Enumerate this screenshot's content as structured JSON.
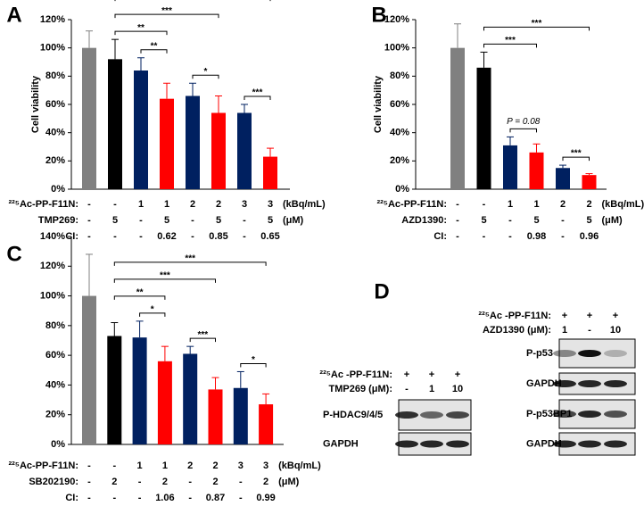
{
  "chart_data": [
    {
      "type": "bar",
      "label": "A",
      "ylabel": "Cell viability",
      "values": [
        100,
        92,
        84,
        64,
        66,
        54,
        54,
        23
      ],
      "errors": [
        12,
        14,
        9,
        11,
        9,
        12,
        6,
        6
      ],
      "colors": [
        "#808080",
        "#000000",
        "#002060",
        "#ff0000",
        "#002060",
        "#ff0000",
        "#002060",
        "#ff0000"
      ],
      "ylim": [
        0,
        120
      ],
      "yticks": [
        {
          "value": 0,
          "label": "0%"
        },
        {
          "value": 20,
          "label": "20%"
        },
        {
          "value": 40,
          "label": "40%"
        },
        {
          "value": 60,
          "label": "60%"
        },
        {
          "value": 80,
          "label": "80%"
        },
        {
          "value": 100,
          "label": "100%"
        },
        {
          "value": 120,
          "label": "120%"
        }
      ],
      "conditions": [
        {
          "label": "²²⁵Ac-PP-F11N:",
          "values": [
            "-",
            "-",
            "1",
            "1",
            "2",
            "2",
            "3",
            "3"
          ],
          "unit": "(kBq/mL)"
        },
        {
          "label": "TMP269:",
          "values": [
            "-",
            "5",
            "-",
            "5",
            "-",
            "5",
            "-",
            "5"
          ],
          "unit": "(μM)"
        },
        {
          "label": "CI:",
          "values": [
            "-",
            "-",
            "-",
            "0.62",
            "-",
            "0.85",
            "-",
            "0.65"
          ]
        }
      ],
      "comparisons": [
        {
          "bars": [
            2,
            3
          ],
          "label": "**"
        },
        {
          "bars": [
            4,
            5
          ],
          "label": "*"
        },
        {
          "bars": [
            6,
            7
          ],
          "label": "***"
        },
        {
          "bars": [
            1,
            3
          ],
          "label": "**"
        },
        {
          "bars": [
            1,
            5
          ],
          "label": "***"
        },
        {
          "bars": [
            1,
            7
          ],
          "label": "***"
        }
      ]
    },
    {
      "type": "bar",
      "label": "B",
      "ylabel": "Cell viability",
      "values": [
        100,
        86,
        31,
        26,
        15,
        10
      ],
      "errors": [
        17,
        11,
        6,
        6,
        2,
        1
      ],
      "colors": [
        "#808080",
        "#000000",
        "#002060",
        "#ff0000",
        "#002060",
        "#ff0000"
      ],
      "ylim": [
        0,
        120
      ],
      "yticks": [
        {
          "value": 0,
          "label": "0%"
        },
        {
          "value": 20,
          "label": "20%"
        },
        {
          "value": 40,
          "label": "40%"
        },
        {
          "value": 60,
          "label": "60%"
        },
        {
          "value": 80,
          "label": "80%"
        },
        {
          "value": 100,
          "label": "100%"
        },
        {
          "value": 120,
          "label": "120%"
        }
      ],
      "conditions": [
        {
          "label": "²²⁵Ac-PP-F11N:",
          "values": [
            "-",
            "-",
            "1",
            "1",
            "2",
            "2"
          ],
          "unit": "(kBq/mL)"
        },
        {
          "label": "AZD1390:",
          "values": [
            "-",
            "5",
            "-",
            "5",
            "-",
            "5"
          ],
          "unit": "(μM)"
        },
        {
          "label": "CI:",
          "values": [
            "-",
            "-",
            "-",
            "0.98",
            "-",
            "0.96"
          ]
        }
      ],
      "comparisons": [
        {
          "bars": [
            2,
            3
          ],
          "label": "P = 0.08"
        },
        {
          "bars": [
            4,
            5
          ],
          "label": "***"
        },
        {
          "bars": [
            1,
            3
          ],
          "label": "***"
        },
        {
          "bars": [
            1,
            5
          ],
          "label": "***"
        }
      ]
    },
    {
      "type": "bar",
      "label": "C",
      "values": [
        100,
        73,
        72,
        56,
        61,
        37,
        38,
        27
      ],
      "errors": [
        28,
        9,
        11,
        10,
        5,
        8,
        11,
        7
      ],
      "colors": [
        "#808080",
        "#000000",
        "#002060",
        "#ff0000",
        "#002060",
        "#ff0000",
        "#002060",
        "#ff0000"
      ],
      "ylim": [
        0,
        140
      ],
      "yticks": [
        {
          "value": 0,
          "label": "0%"
        },
        {
          "value": 20,
          "label": "20%"
        },
        {
          "value": 40,
          "label": "40%"
        },
        {
          "value": 60,
          "label": "60%"
        },
        {
          "value": 80,
          "label": "80%"
        },
        {
          "value": 100,
          "label": "100%"
        },
        {
          "value": 120,
          "label": "120%"
        },
        {
          "value": 140,
          "label": "140%"
        }
      ],
      "conditions": [
        {
          "label": "²²⁵Ac-PP-F11N:",
          "values": [
            "-",
            "-",
            "1",
            "1",
            "2",
            "2",
            "3",
            "3"
          ],
          "unit": "(kBq/mL)"
        },
        {
          "label": "SB202190:",
          "values": [
            "-",
            "2",
            "-",
            "2",
            "-",
            "2",
            "-",
            "2"
          ],
          "unit": "(μM)"
        },
        {
          "label": "CI:",
          "values": [
            "-",
            "-",
            "-",
            "1.06",
            "-",
            "0.87",
            "-",
            "0.99"
          ]
        }
      ],
      "comparisons": [
        {
          "bars": [
            2,
            3
          ],
          "label": "*"
        },
        {
          "bars": [
            4,
            5
          ],
          "label": "***"
        },
        {
          "bars": [
            6,
            7
          ],
          "label": "*"
        },
        {
          "bars": [
            1,
            3
          ],
          "label": "**"
        },
        {
          "bars": [
            1,
            5
          ],
          "label": "***"
        },
        {
          "bars": [
            1,
            7
          ],
          "label": "***"
        }
      ]
    }
  ],
  "blot_panel": {
    "label": "D",
    "blots": [
      {
        "header_rows": [
          {
            "label": "²²⁵Ac -PP-F11N:",
            "values": [
              "+",
              "+",
              "+"
            ]
          },
          {
            "label": "TMP269 (μM):",
            "values": [
              "-",
              "1",
              "10"
            ]
          }
        ],
        "bands": [
          "P-HDAC9/4/5",
          "GAPDH"
        ]
      },
      {
        "header_rows": [
          {
            "label": "²²⁵Ac -PP-F11N:",
            "values": [
              "+",
              "+",
              "+"
            ]
          },
          {
            "label": "AZD1390 (μM):",
            "values": [
              "1",
              "-",
              "10"
            ]
          }
        ],
        "bands": [
          "P-p53",
          "GAPDH",
          "P-p53BP1",
          "GAPDH"
        ]
      }
    ]
  }
}
